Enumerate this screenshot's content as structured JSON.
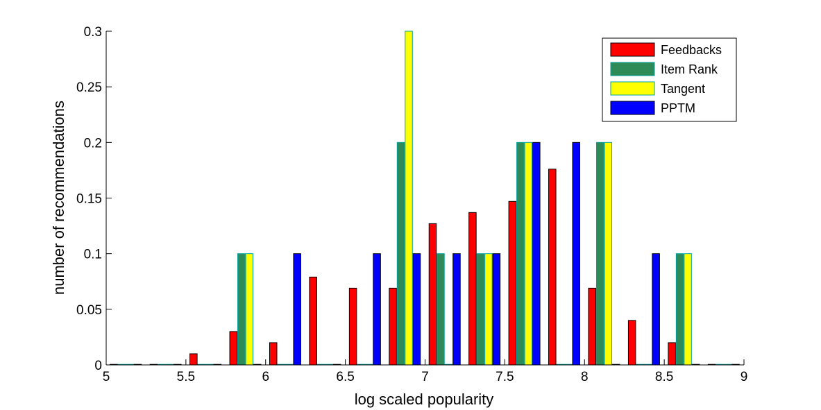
{
  "chart_data": {
    "type": "bar",
    "xlabel": "log scaled popularity",
    "ylabel": "number of recommendations",
    "xlim": [
      5,
      9
    ],
    "ylim": [
      0,
      0.3
    ],
    "xticks": [
      "5",
      "5.5",
      "6",
      "6.5",
      "7",
      "7.5",
      "8",
      "8.5",
      "9"
    ],
    "yticks": [
      "0",
      "0.05",
      "0.1",
      "0.15",
      "0.2",
      "0.25",
      "0.3"
    ],
    "x": [
      5.125,
      5.375,
      5.625,
      5.875,
      6.125,
      6.375,
      6.625,
      6.875,
      7.125,
      7.375,
      7.625,
      7.875,
      8.125,
      8.375,
      8.625,
      8.875
    ],
    "legend_position": "top-right",
    "series": [
      {
        "name": "Feedbacks",
        "color": "#ff0000",
        "values": [
          0,
          0,
          0.01,
          0.03,
          0.02,
          0.079,
          0.069,
          0.069,
          0.127,
          0.137,
          0.147,
          0.176,
          0.069,
          0.04,
          0.02,
          0
        ]
      },
      {
        "name": "Item Rank",
        "color": "#2e8b57",
        "values": [
          0,
          0,
          0,
          0.1,
          0,
          0,
          0,
          0.2,
          0.1,
          0.1,
          0.2,
          0,
          0.2,
          0,
          0.1,
          0
        ]
      },
      {
        "name": "Tangent",
        "color": "#ffff00",
        "values": [
          0,
          0,
          0,
          0.1,
          0,
          0,
          0,
          0.3,
          0,
          0.1,
          0.2,
          0,
          0.2,
          0,
          0.1,
          0
        ]
      },
      {
        "name": "PPTM",
        "color": "#0000ff",
        "values": [
          0,
          0,
          0,
          0,
          0.1,
          0,
          0.1,
          0.1,
          0.1,
          0.1,
          0.2,
          0.2,
          0,
          0.1,
          0,
          0
        ]
      }
    ]
  }
}
